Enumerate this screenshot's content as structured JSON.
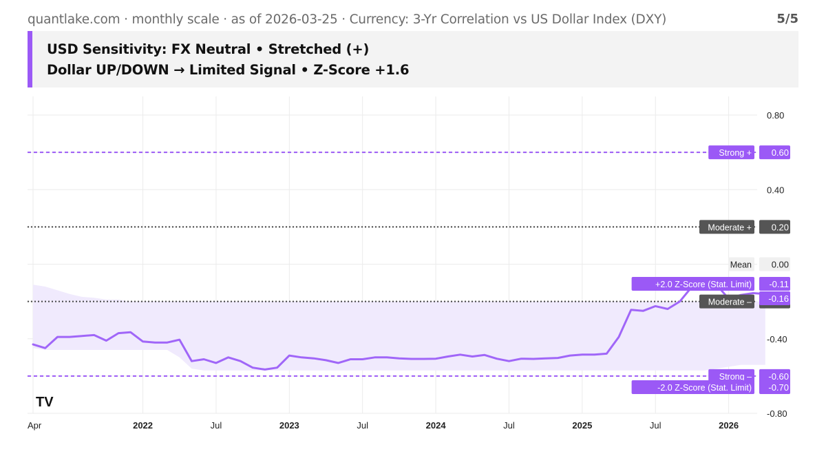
{
  "header": {
    "source_line": "quantlake.com · monthly scale · as of 2026-03-25 · Currency: 3-Yr Correlation vs US Dollar Index (DXY)",
    "pager": "5/5"
  },
  "headline": {
    "line1": "USD Sensitivity: FX Neutral • Stretched (+)",
    "line2": "Dollar UP/DOWN → Limited Signal • Z-Score +1.6"
  },
  "colors": {
    "accent": "#9b59f6",
    "line": "#a066f8",
    "band": "#f0eafd",
    "moderate": "#444444",
    "label_dark": "#555555"
  },
  "chart_data": {
    "type": "line",
    "title": "",
    "xlabel": "",
    "ylabel": "",
    "ylim": [
      -0.8,
      0.9
    ],
    "yticks": [
      "0.80",
      "0.40",
      "-0.40",
      "-0.80"
    ],
    "x_start": "2021-04",
    "xticks": [
      {
        "label": "Apr",
        "date": "2021-04",
        "bold": false
      },
      {
        "label": "2022",
        "date": "2022-01",
        "bold": true
      },
      {
        "label": "Jul",
        "date": "2022-07",
        "bold": false
      },
      {
        "label": "2023",
        "date": "2023-01",
        "bold": true
      },
      {
        "label": "Jul",
        "date": "2023-07",
        "bold": false
      },
      {
        "label": "2024",
        "date": "2024-01",
        "bold": true
      },
      {
        "label": "Jul",
        "date": "2024-07",
        "bold": false
      },
      {
        "label": "2025",
        "date": "2025-01",
        "bold": true
      },
      {
        "label": "Jul",
        "date": "2025-07",
        "bold": false
      },
      {
        "label": "2026",
        "date": "2026-01",
        "bold": true
      }
    ],
    "series": [
      {
        "values": [
          -0.43,
          -0.45,
          -0.39,
          -0.39,
          -0.385,
          -0.38,
          -0.41,
          -0.37,
          -0.365,
          -0.415,
          -0.42,
          -0.42,
          -0.405,
          -0.52,
          -0.51,
          -0.53,
          -0.5,
          -0.52,
          -0.555,
          -0.565,
          -0.555,
          -0.49,
          -0.5,
          -0.505,
          -0.515,
          -0.53,
          -0.51,
          -0.51,
          -0.5,
          -0.5,
          -0.505,
          -0.508,
          -0.508,
          -0.507,
          -0.495,
          -0.485,
          -0.495,
          -0.487,
          -0.507,
          -0.52,
          -0.507,
          -0.508,
          -0.505,
          -0.503,
          -0.49,
          -0.485,
          -0.485,
          -0.48,
          -0.39,
          -0.245,
          -0.25,
          -0.225,
          -0.24,
          -0.2,
          -0.12,
          -0.11,
          -0.11,
          -0.185,
          -0.165,
          -0.155,
          -0.16
        ]
      }
    ],
    "band": {
      "upper": [
        -0.11,
        -0.12,
        -0.14,
        -0.16,
        -0.175,
        -0.18,
        -0.19,
        -0.19,
        -0.2,
        -0.2,
        -0.2,
        -0.2,
        -0.2,
        -0.2,
        -0.2,
        -0.2,
        -0.2,
        -0.2,
        -0.2,
        -0.2,
        -0.2,
        -0.2,
        -0.2,
        -0.2,
        -0.2,
        -0.2,
        -0.2,
        -0.2,
        -0.2,
        -0.2,
        -0.2,
        -0.2,
        -0.2,
        -0.2,
        -0.2,
        -0.2,
        -0.2,
        -0.2,
        -0.2,
        -0.2,
        -0.2,
        -0.2,
        -0.2,
        -0.2,
        -0.2,
        -0.2,
        -0.2,
        -0.2,
        -0.2,
        -0.2,
        -0.2,
        -0.2,
        -0.2,
        -0.2,
        -0.2,
        -0.2,
        -0.2,
        -0.2,
        -0.2,
        -0.2,
        -0.2
      ],
      "lower": [
        -0.45,
        -0.46,
        -0.46,
        -0.46,
        -0.46,
        -0.46,
        -0.46,
        -0.46,
        -0.46,
        -0.46,
        -0.46,
        -0.46,
        -0.5,
        -0.56,
        -0.57,
        -0.57,
        -0.57,
        -0.57,
        -0.57,
        -0.57,
        -0.57,
        -0.57,
        -0.57,
        -0.57,
        -0.57,
        -0.57,
        -0.57,
        -0.57,
        -0.57,
        -0.57,
        -0.57,
        -0.57,
        -0.57,
        -0.57,
        -0.57,
        -0.57,
        -0.57,
        -0.57,
        -0.57,
        -0.57,
        -0.57,
        -0.57,
        -0.57,
        -0.57,
        -0.57,
        -0.57,
        -0.57,
        -0.57,
        -0.57,
        -0.57,
        -0.57,
        -0.57,
        -0.57,
        -0.57,
        -0.57,
        -0.57,
        -0.56,
        -0.55,
        -0.54,
        -0.54,
        -0.54
      ]
    },
    "reference_lines": [
      {
        "name": "Strong +",
        "value": 0.6,
        "value_label": "0.60",
        "style": "purple-dashed"
      },
      {
        "name": "Moderate +",
        "value": 0.2,
        "value_label": "0.20",
        "style": "dark-dotted"
      },
      {
        "name": "Moderate –",
        "value": -0.2,
        "value_label": "-0.20",
        "style": "dark-dotted"
      },
      {
        "name": "Strong –",
        "value": -0.6,
        "value_label": "-0.60",
        "style": "purple-dashed"
      }
    ],
    "markers": [
      {
        "name": "Mean",
        "value": 0.0,
        "value_label": "0.00",
        "style": "light"
      },
      {
        "name": "+2.0 Z-Score (Stat. Limit)",
        "value": -0.11,
        "value_label": "-0.11",
        "style": "purple"
      },
      {
        "name": "",
        "value": -0.16,
        "value_label": "-0.16",
        "style": "purple"
      },
      {
        "name": "-2.0 Z-Score (Stat. Limit)",
        "value": -0.7,
        "value_label": "-0.70",
        "style": "purple"
      }
    ],
    "grid": true,
    "watermark": "TV"
  }
}
